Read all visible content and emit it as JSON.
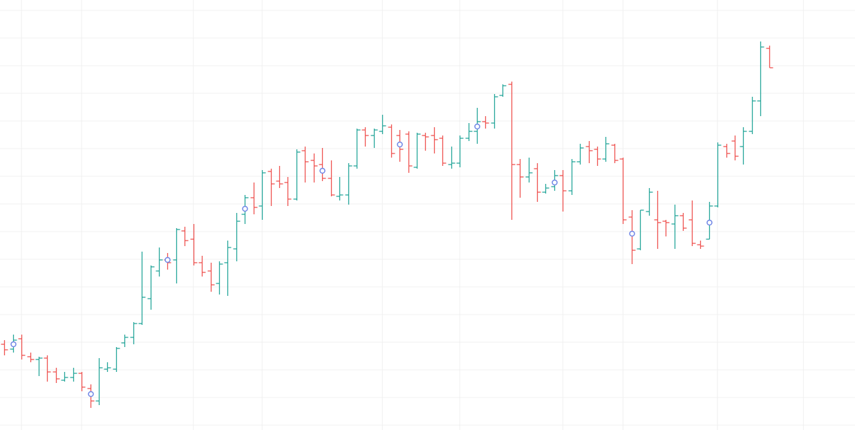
{
  "chart_data": {
    "type": "ohlc",
    "up_color": "#26a69a",
    "down_color": "#ef5350",
    "grid_color": "#f0f0f0",
    "marker_color": "#6f86e6",
    "grid": true,
    "ylim": [
      0,
      622
    ],
    "yticks": [
      7,
      47,
      87,
      127,
      167,
      207,
      247,
      287,
      327,
      367,
      407,
      447,
      487,
      527,
      567,
      607
    ],
    "xlim": [
      -0.5,
      99
    ],
    "xticks": [
      2,
      9,
      22,
      30,
      44,
      53,
      65,
      72,
      83,
      93
    ],
    "open": [
      124,
      117,
      132,
      106,
      102,
      104,
      84,
      72,
      76,
      82,
      60,
      42,
      88,
      88,
      126,
      134,
      154,
      190,
      230,
      246,
      246,
      288,
      276,
      242,
      230,
      212,
      242,
      262,
      312,
      336,
      324,
      374,
      360,
      358,
      334,
      404,
      390,
      384,
      364,
      338,
      340,
      382,
      434,
      426,
      432,
      438,
      426,
      428,
      380,
      426,
      426,
      422,
      384,
      386,
      422,
      432,
      446,
      444,
      484,
      500,
      384,
      366,
      378,
      344,
      352,
      368,
      346,
      388,
      410,
      406,
      392,
      412,
      392,
      308,
      262,
      316,
      304,
      302,
      298,
      310,
      304,
      268,
      276,
      324,
      410,
      418,
      410,
      432,
      476,
      552
    ],
    "high": [
      130,
      138,
      138,
      112,
      106,
      108,
      90,
      84,
      90,
      84,
      66,
      104,
      98,
      120,
      138,
      156,
      258,
      238,
      264,
      256,
      292,
      294,
      298,
      252,
      242,
      244,
      274,
      314,
      340,
      358,
      376,
      378,
      382,
      366,
      406,
      410,
      400,
      408,
      390,
      366,
      386,
      436,
      438,
      436,
      456,
      442,
      434,
      432,
      430,
      430,
      438,
      426,
      410,
      426,
      444,
      466,
      454,
      486,
      500,
      504,
      392,
      394,
      386,
      356,
      376,
      376,
      392,
      414,
      418,
      410,
      424,
      414,
      394,
      318,
      318,
      350,
      346,
      304,
      326,
      314,
      332,
      274,
      330,
      416,
      414,
      426,
      438,
      482,
      562,
      556
    ],
    "low": [
      108,
      112,
      102,
      98,
      78,
      70,
      68,
      70,
      70,
      56,
      32,
      36,
      84,
      84,
      120,
      124,
      152,
      174,
      222,
      232,
      212,
      266,
      238,
      222,
      200,
      196,
      194,
      244,
      298,
      312,
      304,
      324,
      350,
      324,
      332,
      358,
      358,
      360,
      338,
      332,
      326,
      378,
      410,
      408,
      428,
      394,
      388,
      372,
      378,
      404,
      400,
      382,
      378,
      380,
      418,
      414,
      436,
      436,
      482,
      304,
      336,
      358,
      330,
      342,
      346,
      316,
      340,
      384,
      386,
      382,
      388,
      386,
      298,
      240,
      260,
      310,
      262,
      280,
      262,
      288,
      266,
      262,
      276,
      322,
      394,
      390,
      384,
      428,
      454,
      524
    ],
    "close": [
      116,
      130,
      108,
      102,
      104,
      84,
      74,
      76,
      82,
      62,
      42,
      90,
      90,
      118,
      134,
      154,
      192,
      236,
      246,
      242,
      290,
      274,
      242,
      228,
      210,
      240,
      264,
      302,
      336,
      322,
      372,
      356,
      356,
      334,
      402,
      388,
      382,
      364,
      340,
      340,
      382,
      434,
      426,
      434,
      440,
      400,
      406,
      382,
      428,
      424,
      420,
      386,
      386,
      422,
      432,
      446,
      444,
      482,
      498,
      384,
      366,
      372,
      344,
      350,
      368,
      346,
      388,
      408,
      404,
      392,
      414,
      390,
      304,
      260,
      318,
      344,
      300,
      300,
      310,
      292,
      270,
      266,
      324,
      412,
      400,
      396,
      432,
      476,
      554,
      524
    ],
    "markers": [
      null,
      124,
      null,
      null,
      null,
      null,
      null,
      null,
      null,
      null,
      52,
      null,
      null,
      null,
      null,
      null,
      null,
      null,
      null,
      246,
      null,
      null,
      null,
      null,
      null,
      null,
      null,
      null,
      320,
      null,
      null,
      null,
      null,
      null,
      null,
      null,
      null,
      375,
      null,
      null,
      null,
      null,
      null,
      null,
      null,
      null,
      413,
      null,
      null,
      null,
      null,
      null,
      null,
      null,
      null,
      439,
      null,
      null,
      null,
      null,
      null,
      null,
      null,
      null,
      358,
      null,
      null,
      null,
      null,
      null,
      null,
      null,
      null,
      284,
      null,
      null,
      null,
      null,
      null,
      null,
      null,
      null,
      300,
      null,
      null,
      null,
      null,
      null,
      null,
      null
    ]
  }
}
